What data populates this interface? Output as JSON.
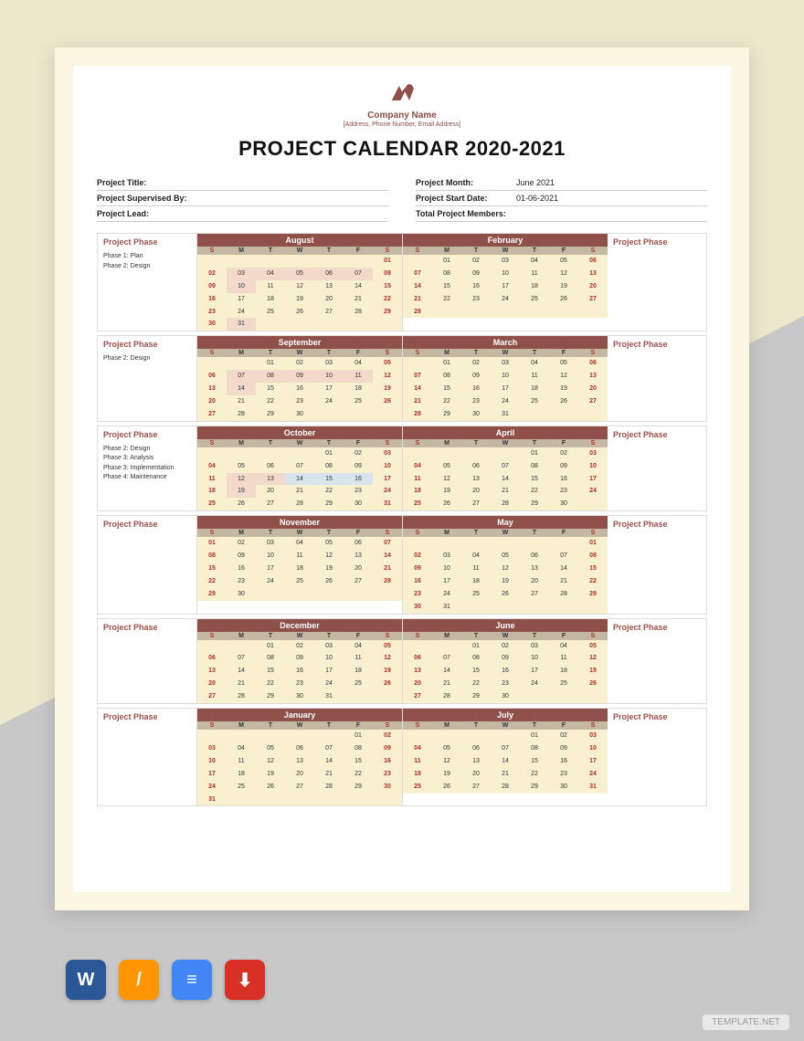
{
  "header": {
    "company": "Company Name",
    "sub": "[Address, Phone Number, Email Address]",
    "title": "PROJECT CALENDAR 2020-2021"
  },
  "meta_left": [
    {
      "label": "Project Title:",
      "value": ""
    },
    {
      "label": "Project Supervised By:",
      "value": ""
    },
    {
      "label": "Project Lead:",
      "value": ""
    }
  ],
  "meta_right": [
    {
      "label": "Project Month:",
      "value": "June 2021"
    },
    {
      "label": "Project Start Date:",
      "value": "01-06-2021"
    },
    {
      "label": "Total Project Members:",
      "value": ""
    }
  ],
  "phase_label": "Project Phase",
  "dow": [
    "S",
    "M",
    "T",
    "W",
    "T",
    "F",
    "S"
  ],
  "rows": [
    {
      "left_phases": [
        "Phase 1: Plan",
        "Phase 2: Design"
      ],
      "right_phases": [],
      "months": [
        {
          "name": "August",
          "weeks": [
            [
              "",
              "",
              "",
              "",
              "",
              "",
              "01"
            ],
            [
              "02",
              "03",
              "04",
              "05",
              "06",
              "07",
              "08"
            ],
            [
              "09",
              "10",
              "11",
              "12",
              "13",
              "14",
              "15"
            ],
            [
              "16",
              "17",
              "18",
              "19",
              "20",
              "21",
              "22"
            ],
            [
              "23",
              "24",
              "25",
              "26",
              "27",
              "28",
              "29"
            ],
            [
              "30",
              "31",
              "",
              "",
              "",
              "",
              ""
            ]
          ],
          "hl": {
            "1": [
              1,
              2,
              3,
              4,
              5
            ],
            "2": [
              1
            ],
            "5": [
              1
            ]
          }
        },
        {
          "name": "February",
          "weeks": [
            [
              "",
              "01",
              "02",
              "03",
              "04",
              "05",
              "06"
            ],
            [
              "07",
              "08",
              "09",
              "10",
              "11",
              "12",
              "13"
            ],
            [
              "14",
              "15",
              "16",
              "17",
              "18",
              "19",
              "20"
            ],
            [
              "21",
              "22",
              "23",
              "24",
              "25",
              "26",
              "27"
            ],
            [
              "28",
              "",
              "",
              "",
              "",
              "",
              ""
            ]
          ],
          "hl": {}
        }
      ]
    },
    {
      "left_phases": [
        "Phase 2: Design"
      ],
      "right_phases": [],
      "months": [
        {
          "name": "September",
          "weeks": [
            [
              "",
              "",
              "01",
              "02",
              "03",
              "04",
              "05"
            ],
            [
              "06",
              "07",
              "08",
              "09",
              "10",
              "11",
              "12"
            ],
            [
              "13",
              "14",
              "15",
              "16",
              "17",
              "18",
              "19"
            ],
            [
              "20",
              "21",
              "22",
              "23",
              "24",
              "25",
              "26"
            ],
            [
              "27",
              "28",
              "29",
              "30",
              "",
              "",
              ""
            ]
          ],
          "hl": {
            "1": [
              1,
              2,
              3,
              4,
              5
            ],
            "2": [
              1
            ]
          }
        },
        {
          "name": "March",
          "weeks": [
            [
              "",
              "01",
              "02",
              "03",
              "04",
              "05",
              "06"
            ],
            [
              "07",
              "08",
              "09",
              "10",
              "11",
              "12",
              "13"
            ],
            [
              "14",
              "15",
              "16",
              "17",
              "18",
              "19",
              "20"
            ],
            [
              "21",
              "22",
              "23",
              "24",
              "25",
              "26",
              "27"
            ],
            [
              "28",
              "29",
              "30",
              "31",
              "",
              "",
              ""
            ]
          ],
          "hl": {}
        }
      ]
    },
    {
      "left_phases": [
        "Phase 2: Design",
        "",
        "Phase 3: Analysis",
        "Phase 3: Implementation",
        "Phase 4: Maintenance"
      ],
      "right_phases": [],
      "months": [
        {
          "name": "October",
          "weeks": [
            [
              "",
              "",
              "",
              "",
              "01",
              "02",
              "03"
            ],
            [
              "04",
              "05",
              "06",
              "07",
              "08",
              "09",
              "10"
            ],
            [
              "11",
              "12",
              "13",
              "14",
              "15",
              "16",
              "17"
            ],
            [
              "18",
              "19",
              "20",
              "21",
              "22",
              "23",
              "24"
            ],
            [
              "25",
              "26",
              "27",
              "28",
              "29",
              "30",
              "31"
            ]
          ],
          "hl": {
            "2": [
              1,
              2
            ],
            "3": [
              1
            ],
            "2b": [
              3,
              4,
              5
            ]
          }
        },
        {
          "name": "April",
          "weeks": [
            [
              "",
              "",
              "",
              "",
              "01",
              "02",
              "03"
            ],
            [
              "04",
              "05",
              "06",
              "07",
              "08",
              "09",
              "10"
            ],
            [
              "11",
              "12",
              "13",
              "14",
              "15",
              "16",
              "17"
            ],
            [
              "18",
              "19",
              "20",
              "21",
              "22",
              "23",
              "24"
            ],
            [
              "25",
              "26",
              "27",
              "28",
              "29",
              "30",
              ""
            ]
          ],
          "hl": {}
        }
      ]
    },
    {
      "left_phases": [],
      "right_phases": [],
      "months": [
        {
          "name": "November",
          "weeks": [
            [
              "01",
              "02",
              "03",
              "04",
              "05",
              "06",
              "07"
            ],
            [
              "08",
              "09",
              "10",
              "11",
              "12",
              "13",
              "14"
            ],
            [
              "15",
              "16",
              "17",
              "18",
              "19",
              "20",
              "21"
            ],
            [
              "22",
              "23",
              "24",
              "25",
              "26",
              "27",
              "28"
            ],
            [
              "29",
              "30",
              "",
              "",
              "",
              "",
              ""
            ]
          ],
          "hl": {}
        },
        {
          "name": "May",
          "weeks": [
            [
              "",
              "",
              "",
              "",
              "",
              "",
              "01"
            ],
            [
              "02",
              "03",
              "04",
              "05",
              "06",
              "07",
              "08"
            ],
            [
              "09",
              "10",
              "11",
              "12",
              "13",
              "14",
              "15"
            ],
            [
              "16",
              "17",
              "18",
              "19",
              "20",
              "21",
              "22"
            ],
            [
              "23",
              "24",
              "25",
              "26",
              "27",
              "28",
              "29"
            ],
            [
              "30",
              "31",
              "",
              "",
              "",
              "",
              ""
            ]
          ],
          "hl": {}
        }
      ]
    },
    {
      "left_phases": [],
      "right_phases": [],
      "months": [
        {
          "name": "December",
          "weeks": [
            [
              "",
              "",
              "01",
              "02",
              "03",
              "04",
              "05"
            ],
            [
              "06",
              "07",
              "08",
              "09",
              "10",
              "11",
              "12"
            ],
            [
              "13",
              "14",
              "15",
              "16",
              "17",
              "18",
              "19"
            ],
            [
              "20",
              "21",
              "22",
              "23",
              "24",
              "25",
              "26"
            ],
            [
              "27",
              "28",
              "29",
              "30",
              "31",
              "",
              ""
            ]
          ],
          "hl": {}
        },
        {
          "name": "June",
          "weeks": [
            [
              "",
              "",
              "01",
              "02",
              "03",
              "04",
              "05"
            ],
            [
              "06",
              "07",
              "08",
              "09",
              "10",
              "11",
              "12"
            ],
            [
              "13",
              "14",
              "15",
              "16",
              "17",
              "18",
              "19"
            ],
            [
              "20",
              "21",
              "22",
              "23",
              "24",
              "25",
              "26"
            ],
            [
              "27",
              "28",
              "29",
              "30",
              "",
              "",
              ""
            ]
          ],
          "hl": {}
        }
      ]
    },
    {
      "left_phases": [],
      "right_phases": [],
      "months": [
        {
          "name": "January",
          "weeks": [
            [
              "",
              "",
              "",
              "",
              "",
              "01",
              "02"
            ],
            [
              "03",
              "04",
              "05",
              "06",
              "07",
              "08",
              "09"
            ],
            [
              "10",
              "11",
              "12",
              "13",
              "14",
              "15",
              "16"
            ],
            [
              "17",
              "18",
              "19",
              "20",
              "21",
              "22",
              "23"
            ],
            [
              "24",
              "25",
              "26",
              "27",
              "28",
              "29",
              "30"
            ],
            [
              "31",
              "",
              "",
              "",
              "",
              "",
              ""
            ]
          ],
          "hl": {}
        },
        {
          "name": "July",
          "weeks": [
            [
              "",
              "",
              "",
              "",
              "01",
              "02",
              "03"
            ],
            [
              "04",
              "05",
              "06",
              "07",
              "08",
              "09",
              "10"
            ],
            [
              "11",
              "12",
              "13",
              "14",
              "15",
              "16",
              "17"
            ],
            [
              "18",
              "19",
              "20",
              "21",
              "22",
              "23",
              "24"
            ],
            [
              "25",
              "26",
              "27",
              "28",
              "29",
              "30",
              "31"
            ]
          ],
          "hl": {}
        }
      ]
    }
  ],
  "formats": [
    {
      "name": "word-icon",
      "bg": "#2b5797",
      "letter": "W"
    },
    {
      "name": "pages-icon",
      "bg": "#ff9500",
      "letter": "/"
    },
    {
      "name": "docs-icon",
      "bg": "#4285f4",
      "letter": "≡"
    },
    {
      "name": "pdf-icon",
      "bg": "#d93025",
      "letter": "⬇"
    }
  ],
  "watermark": "TEMPLATE.NET",
  "colors": {
    "accent": "#8f5049",
    "dow_bg": "#c4b8a2",
    "week_bg": "#f8f0cf",
    "phase_text": "#a0514b",
    "weekend": "#b03028"
  }
}
